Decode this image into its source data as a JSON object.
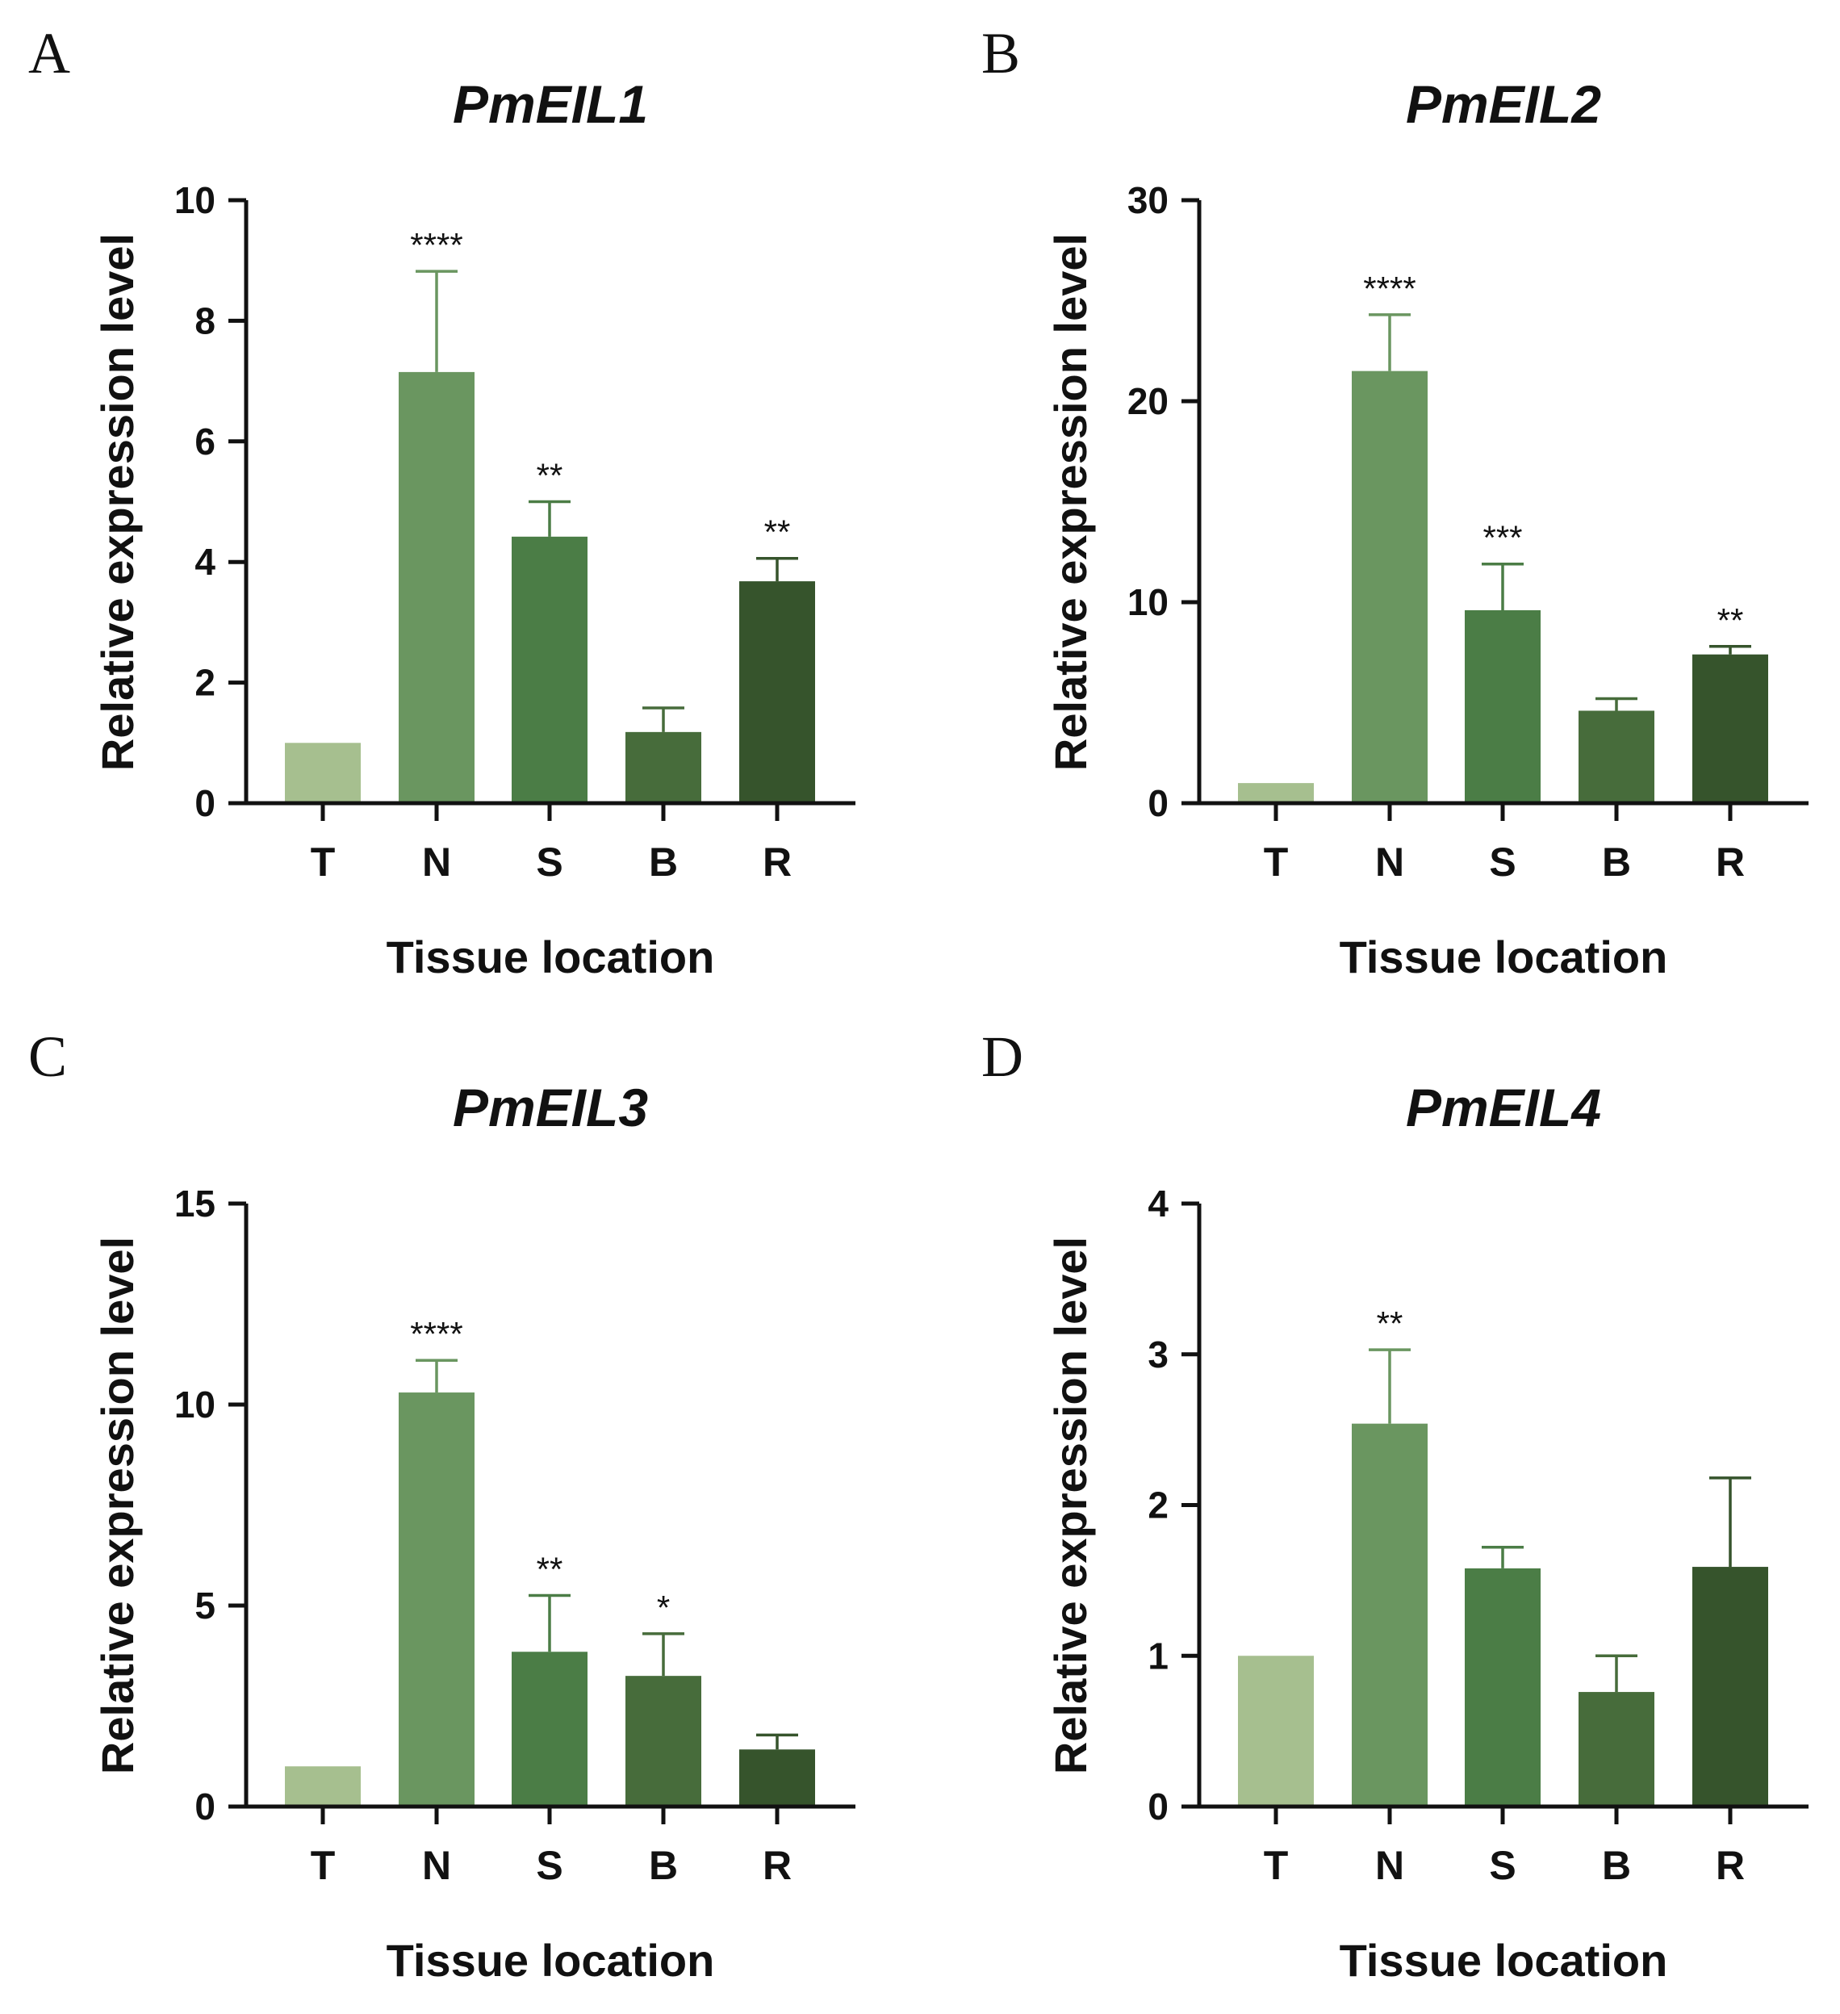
{
  "colors": [
    "#a6bf8f",
    "#6a9660",
    "#4b7d46",
    "#476c3b",
    "#36542c"
  ],
  "chart_data": [
    {
      "panel": "A",
      "type": "bar",
      "title": "PmEIL1",
      "xlabel": "Tissue location",
      "ylabel": "Relative expression level",
      "categories": [
        "T",
        "N",
        "S",
        "B",
        "R"
      ],
      "values": [
        1.0,
        7.15,
        4.42,
        1.18,
        3.68
      ],
      "error_upper": [
        1.0,
        8.82,
        5.0,
        1.58,
        4.06
      ],
      "significance": [
        "",
        "****",
        "**",
        "",
        "**"
      ],
      "ylim": [
        0,
        10
      ],
      "yticks": [
        0,
        2,
        4,
        6,
        8,
        10
      ]
    },
    {
      "panel": "B",
      "type": "bar",
      "title": "PmEIL2",
      "xlabel": "Tissue location",
      "ylabel": "Relative expression level",
      "categories": [
        "T",
        "N",
        "S",
        "B",
        "R"
      ],
      "values": [
        1.0,
        21.5,
        9.6,
        4.6,
        7.4
      ],
      "error_upper": [
        1.0,
        24.3,
        11.9,
        5.2,
        7.8
      ],
      "significance": [
        "",
        "****",
        "***",
        "",
        "**"
      ],
      "ylim": [
        0,
        30
      ],
      "yticks": [
        0,
        10,
        20,
        30
      ]
    },
    {
      "panel": "C",
      "type": "bar",
      "title": "PmEIL3",
      "xlabel": "Tissue location",
      "ylabel": "Relative expression level",
      "categories": [
        "T",
        "N",
        "S",
        "B",
        "R"
      ],
      "values": [
        1.0,
        10.3,
        3.85,
        3.25,
        1.42
      ],
      "error_upper": [
        1.0,
        11.1,
        5.25,
        4.3,
        1.78
      ],
      "significance": [
        "",
        "****",
        "**",
        "*",
        ""
      ],
      "ylim": [
        0,
        15
      ],
      "yticks": [
        0,
        5,
        10,
        15
      ]
    },
    {
      "panel": "D",
      "type": "bar",
      "title": "PmEIL4",
      "xlabel": "Tissue location",
      "ylabel": "Relative expression level",
      "categories": [
        "T",
        "N",
        "S",
        "B",
        "R"
      ],
      "values": [
        1.0,
        2.54,
        1.58,
        0.76,
        1.59
      ],
      "error_upper": [
        1.0,
        3.03,
        1.72,
        1.0,
        2.18
      ],
      "significance": [
        "",
        "**",
        "",
        "",
        ""
      ],
      "ylim": [
        0,
        4
      ],
      "yticks": [
        0,
        1,
        2,
        3,
        4
      ]
    }
  ]
}
